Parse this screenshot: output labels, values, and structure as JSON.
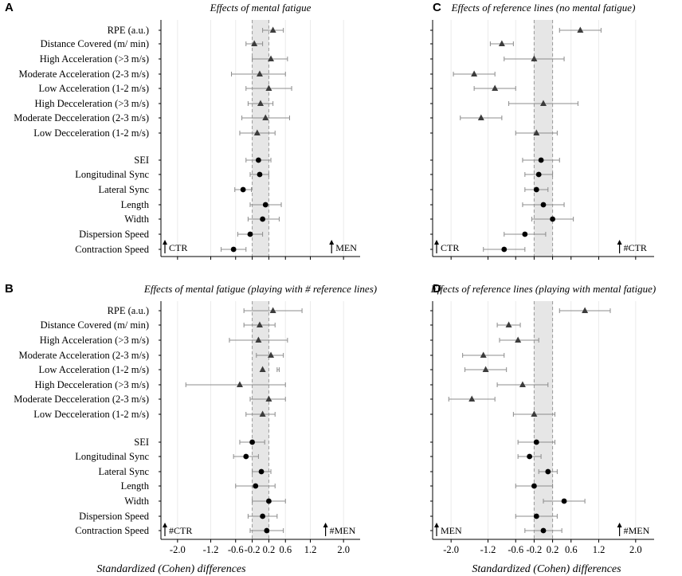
{
  "chart_data": [
    {
      "panel": "A",
      "type": "forest",
      "title": "Effects of mental fatigue",
      "xlim": [
        -2.4,
        2.4
      ],
      "xticks": [
        -2.0,
        -1.2,
        -0.6,
        -0.2,
        0.2,
        0.6,
        1.2,
        2.0
      ],
      "xtick_labels": [
        "-2.0",
        "-1.2",
        "-0.6",
        "-0.2",
        "0.2",
        "0.6",
        "1.2",
        "2.0"
      ],
      "shaded_band": [
        -0.2,
        0.2
      ],
      "left_corner": "CTR",
      "right_corner": "MEN",
      "series": [
        {
          "name": "RPE (a.u.)",
          "marker": "triangle",
          "estimate": 0.3,
          "lower": 0.05,
          "upper": 0.55
        },
        {
          "name": "Distance Covered (m/ min)",
          "marker": "triangle",
          "estimate": -0.15,
          "lower": -0.35,
          "upper": 0.05
        },
        {
          "name": "High Acceleration (>3 m/s)",
          "marker": "triangle",
          "estimate": 0.25,
          "lower": -0.2,
          "upper": 0.65
        },
        {
          "name": "Moderate Acceleration (2-3 m/s)",
          "marker": "triangle",
          "estimate": -0.02,
          "lower": -0.7,
          "upper": 0.6
        },
        {
          "name": "Low Acceleration (1-2 m/s)",
          "marker": "triangle",
          "estimate": 0.2,
          "lower": -0.35,
          "upper": 0.75
        },
        {
          "name": "High Decceleration (>3 m/s)",
          "marker": "triangle",
          "estimate": 0.0,
          "lower": -0.3,
          "upper": 0.3
        },
        {
          "name": "Moderate Decceleration (2-3 m/s)",
          "marker": "triangle",
          "estimate": 0.12,
          "lower": -0.45,
          "upper": 0.7
        },
        {
          "name": "Low Decceleration (1-2 m/s)",
          "marker": "triangle",
          "estimate": -0.08,
          "lower": -0.5,
          "upper": 0.35
        },
        {
          "name": "SEI",
          "marker": "circle",
          "estimate": -0.05,
          "lower": -0.35,
          "upper": 0.25
        },
        {
          "name": "Longitudinal Sync",
          "marker": "circle",
          "estimate": -0.02,
          "lower": -0.25,
          "upper": 0.2
        },
        {
          "name": "Lateral Sync",
          "marker": "circle",
          "estimate": -0.42,
          "lower": -0.62,
          "upper": -0.22
        },
        {
          "name": "Length",
          "marker": "circle",
          "estimate": 0.12,
          "lower": -0.25,
          "upper": 0.5
        },
        {
          "name": "Width",
          "marker": "circle",
          "estimate": 0.05,
          "lower": -0.3,
          "upper": 0.45
        },
        {
          "name": "Dispersion Speed",
          "marker": "circle",
          "estimate": -0.25,
          "lower": -0.55,
          "upper": 0.05
        },
        {
          "name": "Contraction Speed",
          "marker": "circle",
          "estimate": -0.65,
          "lower": -0.95,
          "upper": -0.35
        }
      ]
    },
    {
      "panel": "C",
      "type": "forest",
      "title": "Effects of reference lines (no mental fatigue)",
      "xlim": [
        -2.4,
        2.4
      ],
      "xticks": [
        -2.0,
        -1.2,
        -0.6,
        -0.2,
        0.2,
        0.6,
        1.2,
        2.0
      ],
      "xtick_labels": [
        "-2.0",
        "-1.2",
        "-0.6",
        "-0.2",
        "0.2",
        "0.6",
        "1.2",
        "2.0"
      ],
      "shaded_band": [
        -0.2,
        0.2
      ],
      "left_corner": "CTR",
      "right_corner": "#CTR",
      "series": [
        {
          "name": "RPE (a.u.)",
          "marker": "triangle",
          "estimate": 0.8,
          "lower": 0.35,
          "upper": 1.25
        },
        {
          "name": "Distance Covered (m/ min)",
          "marker": "triangle",
          "estimate": -0.9,
          "lower": -1.15,
          "upper": -0.65
        },
        {
          "name": "High Acceleration (>3 m/s)",
          "marker": "triangle",
          "estimate": -0.2,
          "lower": -0.85,
          "upper": 0.45
        },
        {
          "name": "Moderate Acceleration (2-3 m/s)",
          "marker": "triangle",
          "estimate": -1.5,
          "lower": -1.95,
          "upper": -1.05
        },
        {
          "name": "Low Acceleration (1-2 m/s)",
          "marker": "triangle",
          "estimate": -1.05,
          "lower": -1.5,
          "upper": -0.6
        },
        {
          "name": "High Decceleration (>3 m/s)",
          "marker": "triangle",
          "estimate": 0.0,
          "lower": -0.75,
          "upper": 0.75
        },
        {
          "name": "Moderate Decceleration (2-3 m/s)",
          "marker": "triangle",
          "estimate": -1.35,
          "lower": -1.8,
          "upper": -0.9
        },
        {
          "name": "Low Decceleration (1-2 m/s)",
          "marker": "triangle",
          "estimate": -0.15,
          "lower": -0.6,
          "upper": 0.3
        },
        {
          "name": "SEI",
          "marker": "circle",
          "estimate": -0.05,
          "lower": -0.45,
          "upper": 0.35
        },
        {
          "name": "Longitudinal Sync",
          "marker": "circle",
          "estimate": -0.1,
          "lower": -0.4,
          "upper": 0.2
        },
        {
          "name": "Lateral Sync",
          "marker": "circle",
          "estimate": -0.15,
          "lower": -0.4,
          "upper": 0.1
        },
        {
          "name": "Length",
          "marker": "circle",
          "estimate": 0.0,
          "lower": -0.45,
          "upper": 0.45
        },
        {
          "name": "Width",
          "marker": "circle",
          "estimate": 0.2,
          "lower": -0.25,
          "upper": 0.65
        },
        {
          "name": "Dispersion Speed",
          "marker": "circle",
          "estimate": -0.4,
          "lower": -0.85,
          "upper": 0.05
        },
        {
          "name": "Contraction Speed",
          "marker": "circle",
          "estimate": -0.85,
          "lower": -1.3,
          "upper": -0.4
        }
      ]
    },
    {
      "panel": "B",
      "type": "forest",
      "title": "Effects of mental fatigue (playing with # reference lines)",
      "xlim": [
        -2.4,
        2.4
      ],
      "xticks": [
        -2.0,
        -1.2,
        -0.6,
        -0.2,
        0.2,
        0.6,
        1.2,
        2.0
      ],
      "xtick_labels": [
        "-2.0",
        "-1.2",
        "-0.6",
        "-0.2",
        "0.2",
        "0.6",
        "1.2",
        "2.0"
      ],
      "shaded_band": [
        -0.2,
        0.2
      ],
      "left_corner": "#CTR",
      "right_corner": "#MEN",
      "series": [
        {
          "name": "RPE (a.u.)",
          "marker": "triangle",
          "estimate": 0.3,
          "lower": -0.4,
          "upper": 1.0
        },
        {
          "name": "Distance Covered (m/ min)",
          "marker": "triangle",
          "estimate": -0.02,
          "lower": -0.4,
          "upper": 0.35
        },
        {
          "name": "High Acceleration (>3 m/s)",
          "marker": "triangle",
          "estimate": -0.05,
          "lower": -0.75,
          "upper": 0.65
        },
        {
          "name": "Moderate Acceleration (2-3 m/s)",
          "marker": "triangle",
          "estimate": 0.25,
          "lower": -0.1,
          "upper": 0.55
        },
        {
          "name": "Low Acceleration (1-2 m/s)",
          "marker": "triangle",
          "estimate": 0.05,
          "lower": 0.4,
          "upper": 0.45
        },
        {
          "name": "High Decceleration (>3 m/s)",
          "marker": "triangle",
          "estimate": -0.5,
          "lower": -1.8,
          "upper": 0.6
        },
        {
          "name": "Moderate Decceleration (2-3 m/s)",
          "marker": "triangle",
          "estimate": 0.2,
          "lower": -0.25,
          "upper": 0.6
        },
        {
          "name": "Low Decceleration (1-2 m/s)",
          "marker": "triangle",
          "estimate": 0.05,
          "lower": -0.35,
          "upper": 0.35
        },
        {
          "name": "SEI",
          "marker": "circle",
          "estimate": -0.2,
          "lower": -0.5,
          "upper": 0.1
        },
        {
          "name": "Longitudinal Sync",
          "marker": "circle",
          "estimate": -0.35,
          "lower": -0.65,
          "upper": -0.05
        },
        {
          "name": "Lateral Sync",
          "marker": "circle",
          "estimate": 0.02,
          "lower": -0.2,
          "upper": 0.25
        },
        {
          "name": "Length",
          "marker": "circle",
          "estimate": -0.12,
          "lower": -0.6,
          "upper": 0.35
        },
        {
          "name": "Width",
          "marker": "circle",
          "estimate": 0.2,
          "lower": -0.2,
          "upper": 0.6
        },
        {
          "name": "Dispersion Speed",
          "marker": "circle",
          "estimate": 0.05,
          "lower": -0.3,
          "upper": 0.4
        },
        {
          "name": "Contraction Speed",
          "marker": "circle",
          "estimate": 0.15,
          "lower": -0.25,
          "upper": 0.55
        }
      ]
    },
    {
      "panel": "D",
      "type": "forest",
      "title": "Effects of reference lines (playing with mental fatigue)",
      "xlim": [
        -2.4,
        2.4
      ],
      "xticks": [
        -2.0,
        -1.2,
        -0.6,
        -0.2,
        0.2,
        0.6,
        1.2,
        2.0
      ],
      "xtick_labels": [
        "-2.0",
        "-1.2",
        "-0.6",
        "-0.2",
        "0.2",
        "0.6",
        "1.2",
        "2.0"
      ],
      "shaded_band": [
        -0.2,
        0.2
      ],
      "left_corner": "MEN",
      "right_corner": "#MEN",
      "series": [
        {
          "name": "RPE (a.u.)",
          "marker": "triangle",
          "estimate": 0.9,
          "lower": 0.35,
          "upper": 1.45
        },
        {
          "name": "Distance Covered (m/ min)",
          "marker": "triangle",
          "estimate": -0.75,
          "lower": -1.0,
          "upper": -0.5
        },
        {
          "name": "High Acceleration (>3 m/s)",
          "marker": "triangle",
          "estimate": -0.55,
          "lower": -0.95,
          "upper": -0.1
        },
        {
          "name": "Moderate Acceleration (2-3 m/s)",
          "marker": "triangle",
          "estimate": -1.3,
          "lower": -1.75,
          "upper": -0.85
        },
        {
          "name": "Low Acceleration (1-2 m/s)",
          "marker": "triangle",
          "estimate": -1.25,
          "lower": -1.7,
          "upper": -0.8
        },
        {
          "name": "High Decceleration (>3 m/s)",
          "marker": "triangle",
          "estimate": -0.45,
          "lower": -1.0,
          "upper": 0.1
        },
        {
          "name": "Moderate Decceleration (2-3 m/s)",
          "marker": "triangle",
          "estimate": -1.55,
          "lower": -2.05,
          "upper": -1.05
        },
        {
          "name": "Low Decceleration (1-2 m/s)",
          "marker": "triangle",
          "estimate": -0.2,
          "lower": -0.65,
          "upper": 0.25
        },
        {
          "name": "SEI",
          "marker": "circle",
          "estimate": -0.15,
          "lower": -0.55,
          "upper": 0.25
        },
        {
          "name": "Longitudinal Sync",
          "marker": "circle",
          "estimate": -0.3,
          "lower": -0.55,
          "upper": -0.05
        },
        {
          "name": "Lateral Sync",
          "marker": "circle",
          "estimate": 0.1,
          "lower": -0.1,
          "upper": 0.3
        },
        {
          "name": "Length",
          "marker": "circle",
          "estimate": -0.2,
          "lower": -0.6,
          "upper": 0.2
        },
        {
          "name": "Width",
          "marker": "circle",
          "estimate": 0.45,
          "lower": 0.0,
          "upper": 0.9
        },
        {
          "name": "Dispersion Speed",
          "marker": "circle",
          "estimate": -0.15,
          "lower": -0.6,
          "upper": 0.3
        },
        {
          "name": "Contraction Speed",
          "marker": "circle",
          "estimate": 0.0,
          "lower": -0.4,
          "upper": 0.4
        }
      ]
    }
  ],
  "xlabel": "Standardized (Cohen) differences",
  "colors": {
    "band": "#e6e6e6",
    "band_edge": "#9a9a9a",
    "grid": "#ebebeb",
    "axis": "#000000",
    "triangle": "#3c3c3c",
    "circle": "#000000",
    "ci": "#8c8c8c"
  }
}
